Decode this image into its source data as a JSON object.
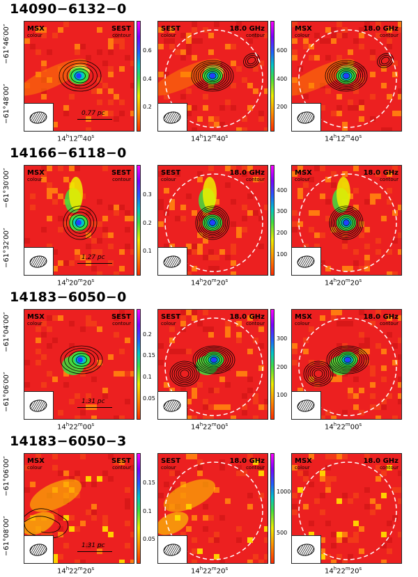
{
  "rows": [
    {
      "title": "14090−6132−0",
      "ra": {
        "h": "14",
        "m": "12",
        "s": "40"
      },
      "dec_ticks": [
        "−61°46′00″",
        "−61°48′00″"
      ],
      "scale": "0.77 pc",
      "cbar1": [
        "0.6",
        "0.4",
        "0.2"
      ],
      "cbar2": [
        "600",
        "400",
        "200"
      ]
    },
    {
      "title": "14166−6118−0",
      "ra": {
        "h": "14",
        "m": "20",
        "s": "20"
      },
      "dec_ticks": [
        "−61°30′00″",
        "−61°32′00″"
      ],
      "scale": "1.27 pc",
      "cbar1": [
        "0.3",
        "0.2",
        "0.1"
      ],
      "cbar2": [
        "400",
        "300",
        "200",
        "100"
      ]
    },
    {
      "title": "14183−6050−0",
      "ra": {
        "h": "14",
        "m": "22",
        "s": "00"
      },
      "dec_ticks": [
        "−61°04′00″",
        "−61°06′00″"
      ],
      "scale": "1.31 pc",
      "cbar1": [
        "0.2",
        "0.15",
        "0.1",
        "0.05"
      ],
      "cbar2": [
        "300",
        "200",
        "100"
      ]
    },
    {
      "title": "14183−6050−3",
      "ra": {
        "h": "14",
        "m": "22",
        "s": "20"
      },
      "dec_ticks": [
        "−61°06′00″",
        "−61°08′00″"
      ],
      "scale": "1.31 pc",
      "cbar1": [
        "0.15",
        "0.1",
        "0.05"
      ],
      "cbar2": [
        "1000",
        "500"
      ]
    }
  ],
  "labels": {
    "msx": "MSX",
    "sest": "SEST",
    "freq": "18.0 GHz",
    "colour": "colour",
    "contour": "contour"
  },
  "colors": {
    "background_map": "#ec2020",
    "dashed_circle": "#ffffff"
  }
}
